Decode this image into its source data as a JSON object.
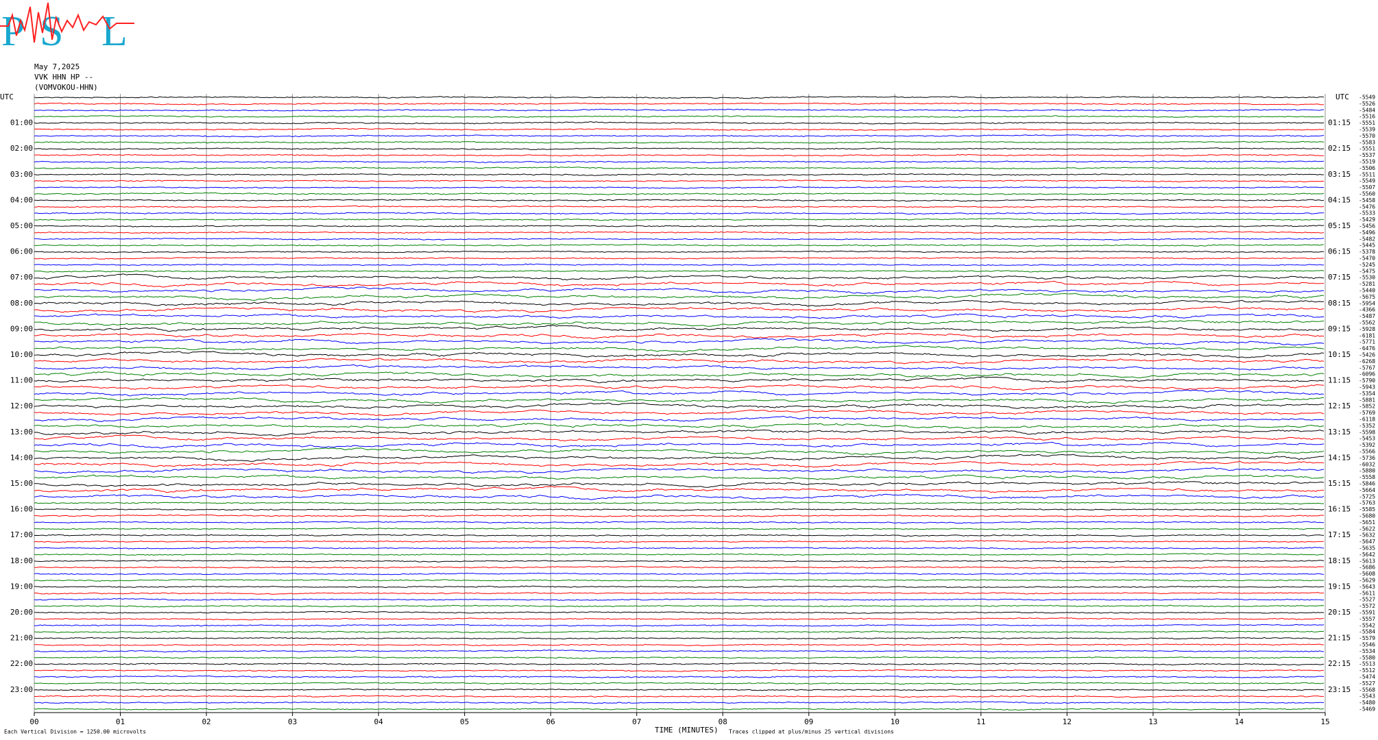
{
  "logo": {
    "letters": [
      "P",
      "S",
      "L"
    ]
  },
  "chart_data": {
    "type": "helicorder",
    "header_lines": [
      "May 7,2025",
      "VVK HHN HP --",
      "(VOMVOKOU-HHN)"
    ],
    "utc_label": "UTC",
    "hour_labels_left": [
      "01:00",
      "02:00",
      "03:00",
      "04:00",
      "05:00",
      "06:00",
      "07:00",
      "08:00",
      "09:00",
      "10:00",
      "11:00",
      "12:00",
      "13:00",
      "14:00",
      "15:00",
      "16:00",
      "17:00",
      "18:00",
      "19:00",
      "20:00",
      "21:00",
      "22:00",
      "23:00"
    ],
    "hour_labels_right": [
      "01:15",
      "02:15",
      "03:15",
      "04:15",
      "05:15",
      "06:15",
      "07:15",
      "08:15",
      "09:15",
      "10:15",
      "11:15",
      "12:15",
      "13:15",
      "14:15",
      "15:15",
      "16:15",
      "17:15",
      "18:15",
      "19:15",
      "20:15",
      "21:15",
      "22:15",
      "23:15"
    ],
    "trace_values": [
      -5549,
      -5526,
      -5484,
      -5516,
      -5551,
      -5539,
      -5570,
      -5583,
      -5551,
      -5537,
      -5519,
      -5506,
      -5511,
      -5549,
      -5507,
      -5560,
      -5458,
      -5476,
      -5533,
      -5429,
      -5456,
      -5496,
      -5482,
      -5445,
      -5378,
      -5470,
      -5245,
      -5475,
      -5530,
      -5281,
      -5440,
      -5675,
      -5954,
      -4366,
      -5487,
      -5562,
      -5928,
      -6181,
      -5771,
      -6476,
      -5426,
      -6268,
      -5767,
      -6096,
      -5790,
      -5943,
      -5354,
      -5881,
      -5852,
      -5769,
      -6118,
      -5352,
      -5598,
      -5453,
      -5392,
      -5566,
      -5736,
      -6032,
      -5880,
      -5558,
      -5846,
      -5664,
      -5725,
      -5763,
      -5585,
      -5680,
      -5651,
      -5622,
      -5632,
      -5647,
      -5635,
      -5642,
      -5613,
      -5686,
      -5608,
      -5629,
      -5643,
      -5611,
      -5527,
      -5572,
      -5591,
      -5557,
      -5542,
      -5584,
      -5579,
      -5546,
      -5534,
      -5580,
      -5513,
      -5512,
      -5474,
      -5527,
      -5568,
      -5543,
      -5480,
      -5469
    ],
    "trace_colors": [
      "#000000",
      "#ff0000",
      "#0000ff",
      "#008000"
    ],
    "xlim": [
      0,
      15
    ],
    "xticks": [
      {
        "value": 0,
        "label": "00"
      },
      {
        "value": 1,
        "label": "01"
      },
      {
        "value": 2,
        "label": "02"
      },
      {
        "value": 3,
        "label": "03"
      },
      {
        "value": 4,
        "label": "04"
      },
      {
        "value": 5,
        "label": "05"
      },
      {
        "value": 6,
        "label": "06"
      },
      {
        "value": 7,
        "label": "07"
      },
      {
        "value": 8,
        "label": "08"
      },
      {
        "value": 9,
        "label": "09"
      },
      {
        "value": 10,
        "label": "10"
      },
      {
        "value": 11,
        "label": "11"
      },
      {
        "value": 12,
        "label": "12"
      },
      {
        "value": 13,
        "label": "13"
      },
      {
        "value": 14,
        "label": "14"
      },
      {
        "value": 15,
        "label": "15"
      }
    ],
    "xlabel": "TIME (MINUTES)",
    "footnote_left": "Each Vertical Division = 1250.00 microvolts",
    "footnote_right": "Traces clipped at plus/minus 25 vertical divisions",
    "grid": true
  }
}
